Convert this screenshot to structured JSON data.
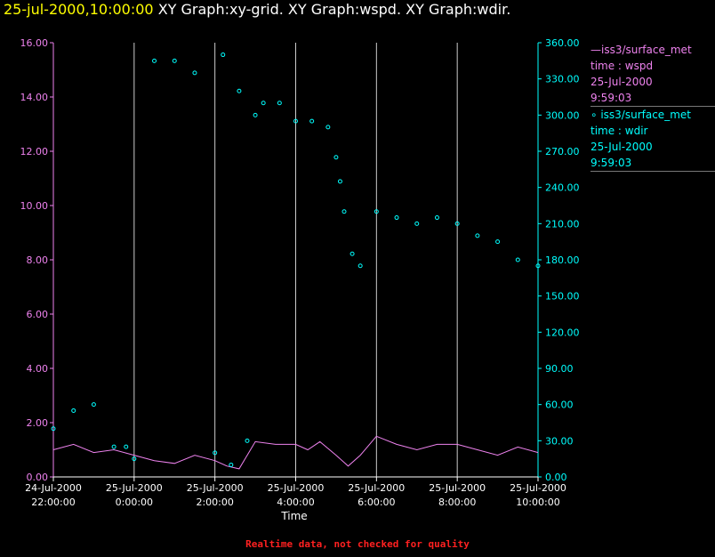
{
  "header": {
    "timestamp": "25-jul-2000,10:00:00",
    "graphs": "XY Graph:xy-grid.  XY Graph:wspd.  XY Graph:wdir."
  },
  "legend": {
    "wspd": {
      "line1": "—iss3/surface_met",
      "line2": "time : wspd",
      "line3": "25-Jul-2000",
      "line4": "9:59:03"
    },
    "wdir": {
      "line1": "∘ iss3/surface_met",
      "line2": "time : wdir",
      "line3": "25-Jul-2000",
      "line4": "9:59:03"
    }
  },
  "footer": {
    "notice": "Realtime data, not checked for quality"
  },
  "colors": {
    "wspd": "#ee82ee",
    "wdir": "#00ffff",
    "title_ts": "#ffff00",
    "notice": "#ff2020"
  },
  "chart_data": {
    "type": "line+scatter",
    "xlabel": "Time",
    "x_range_hours": [
      -2,
      10
    ],
    "x_ticks": [
      {
        "h": -2,
        "date": "24-Jul-2000",
        "time": "22:00:00"
      },
      {
        "h": 0,
        "date": "25-Jul-2000",
        "time": "0:00:00"
      },
      {
        "h": 2,
        "date": "25-Jul-2000",
        "time": "2:00:00"
      },
      {
        "h": 4,
        "date": "25-Jul-2000",
        "time": "4:00:00"
      },
      {
        "h": 6,
        "date": "25-Jul-2000",
        "time": "6:00:00"
      },
      {
        "h": 8,
        "date": "25-Jul-2000",
        "time": "8:00:00"
      },
      {
        "h": 10,
        "date": "25-Jul-2000",
        "time": "10:00:00"
      }
    ],
    "left_axis": {
      "series": "wspd",
      "range": [
        0,
        16
      ],
      "ticks": [
        "0.00",
        "2.00",
        "4.00",
        "6.00",
        "8.00",
        "10.00",
        "12.00",
        "14.00",
        "16.00"
      ]
    },
    "right_axis": {
      "series": "wdir",
      "range": [
        0,
        360
      ],
      "ticks": [
        "0.00",
        "30.00",
        "60.00",
        "90.00",
        "120.00",
        "150.00",
        "180.00",
        "210.00",
        "240.00",
        "270.00",
        "300.00",
        "330.00",
        "360.00"
      ]
    },
    "grid": "vertical",
    "series": [
      {
        "name": "wspd",
        "style": "line",
        "axis": "left",
        "x": [
          -2,
          -1.5,
          -1,
          -0.5,
          0,
          0.5,
          1,
          1.5,
          2,
          2.3,
          2.6,
          3,
          3.5,
          4,
          4.3,
          4.6,
          5,
          5.3,
          5.6,
          6,
          6.5,
          7,
          7.5,
          8,
          8.5,
          9,
          9.5,
          10
        ],
        "y": [
          1.0,
          1.2,
          0.9,
          1.0,
          0.8,
          0.6,
          0.5,
          0.8,
          0.6,
          0.4,
          0.3,
          1.3,
          1.2,
          1.2,
          1.0,
          1.3,
          0.8,
          0.4,
          0.8,
          1.5,
          1.2,
          1.0,
          1.2,
          1.2,
          1.0,
          0.8,
          1.1,
          0.9
        ]
      },
      {
        "name": "wdir",
        "style": "markers",
        "axis": "right",
        "x": [
          -2,
          -1.5,
          -1,
          -0.5,
          -0.2,
          0,
          0.5,
          1,
          1.5,
          2,
          2.2,
          2.4,
          2.6,
          2.8,
          3,
          3.2,
          3.6,
          4,
          4.4,
          4.8,
          5,
          5.1,
          5.2,
          5.4,
          5.6,
          6,
          6.5,
          7,
          7.5,
          8,
          8.5,
          9,
          9.5,
          10
        ],
        "y": [
          40,
          55,
          60,
          25,
          25,
          15,
          345,
          345,
          335,
          20,
          350,
          10,
          320,
          30,
          300,
          310,
          310,
          295,
          295,
          290,
          265,
          245,
          220,
          185,
          175,
          220,
          215,
          210,
          215,
          210,
          200,
          195,
          180,
          175
        ]
      }
    ]
  }
}
